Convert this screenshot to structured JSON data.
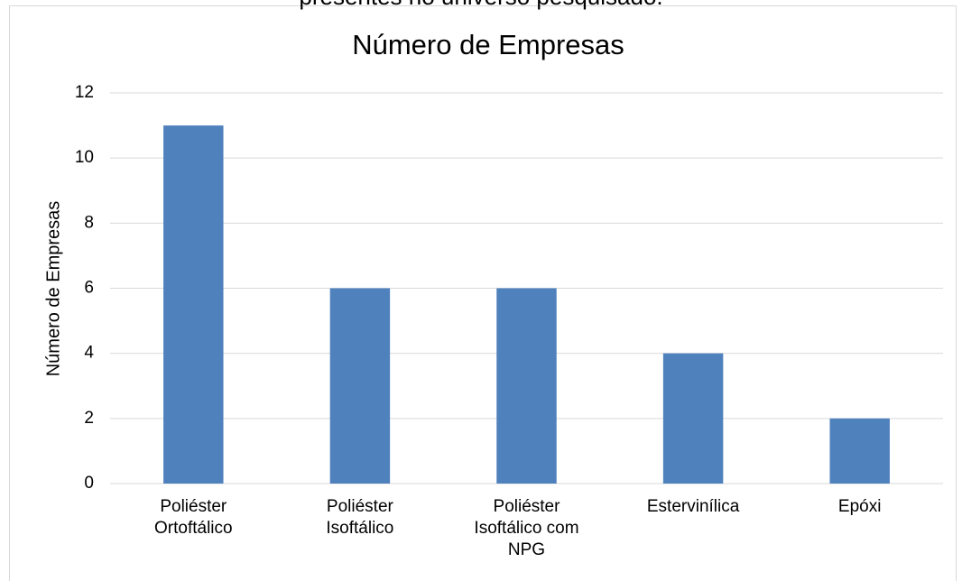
{
  "caption": "presentes no universo pesquisado.",
  "chart_data": {
    "type": "bar",
    "title": "Número de Empresas",
    "y_label": "Número de Empresas",
    "categories": [
      "Poliéster Ortoftálico",
      "Poliéster Isoftálico",
      "Poliéster Isoftálico com NPG",
      "Estervinílica",
      "Epóxi"
    ],
    "values": [
      11,
      6,
      6,
      4,
      2
    ],
    "color": "#4f81bd",
    "ylim": [
      0,
      12
    ],
    "yticks": [
      0,
      2,
      4,
      6,
      8,
      10,
      12
    ],
    "grid": true
  }
}
